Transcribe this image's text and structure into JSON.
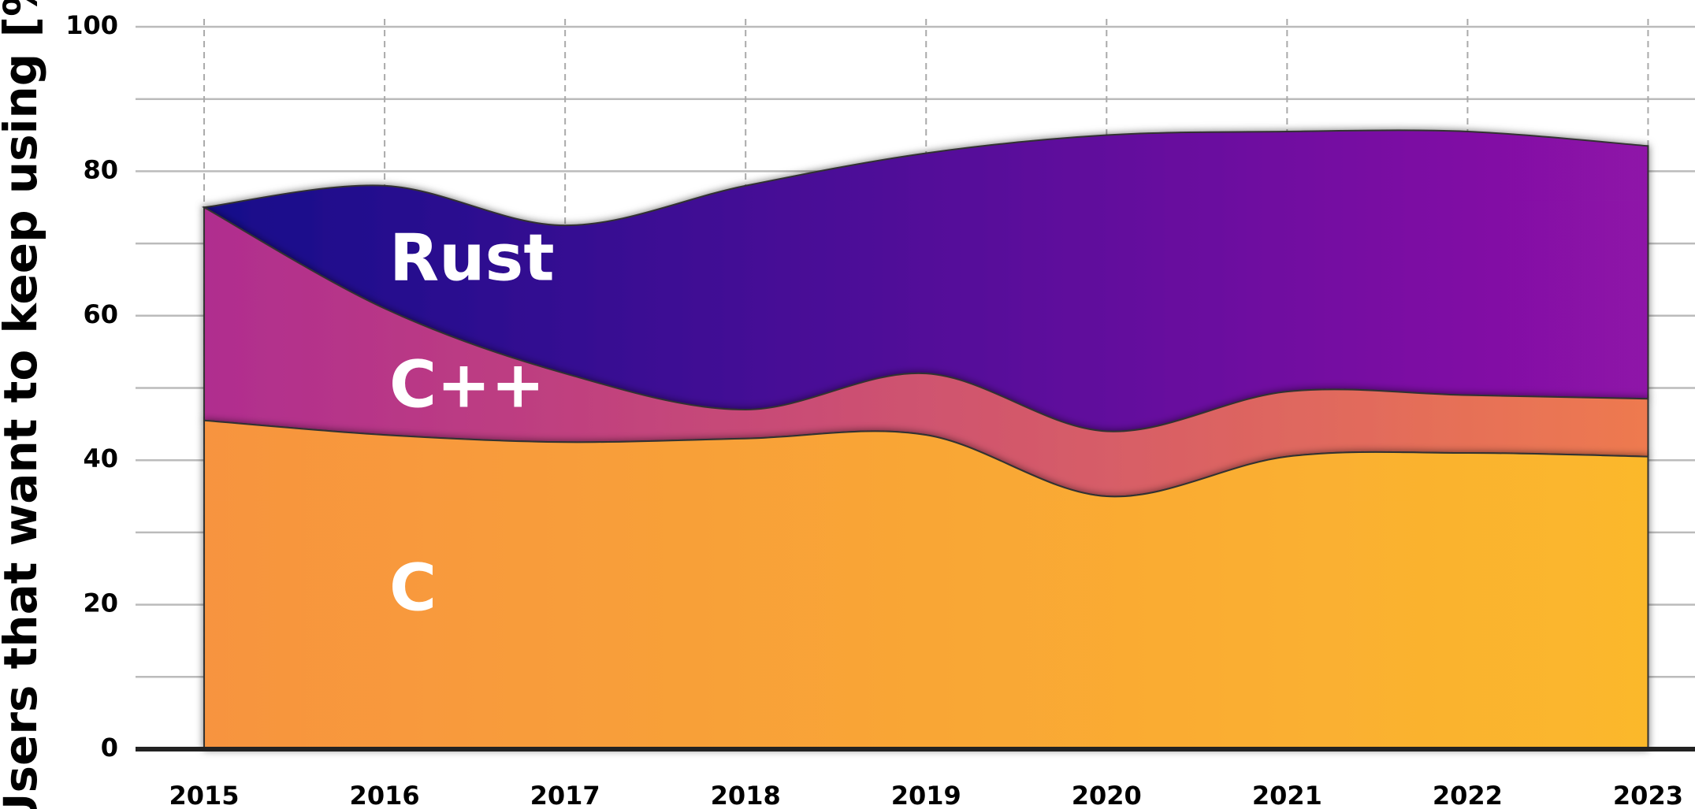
{
  "chart_data": {
    "type": "stacked_area",
    "y_label": "Users that want to keep using [%]",
    "x": [
      2015,
      2016,
      2017,
      2018,
      2019,
      2020,
      2021,
      2022,
      2023
    ],
    "series": [
      {
        "name": "C",
        "color": "#f7943f",
        "color_end": "#fbb82c",
        "values": [
          45.5,
          43.5,
          42.5,
          43,
          43.5,
          35,
          40.5,
          41,
          40.5
        ]
      },
      {
        "name": "C++",
        "color": "#b02d8f",
        "color_end": "#ee7a4f",
        "values": [
          29.5,
          17.5,
          9.5,
          4,
          8.5,
          9,
          9,
          8,
          8
        ]
      },
      {
        "name": "Rust",
        "color": "#16088a",
        "color_end": "#8f12a8",
        "values": [
          0,
          17,
          20.5,
          31,
          30.5,
          41,
          36,
          36.5,
          35
        ]
      }
    ],
    "xlim": [
      2014.62,
      2023.26
    ],
    "xticks": [
      2015,
      2016,
      2017,
      2018,
      2019,
      2020,
      2021,
      2022,
      2023
    ],
    "ylim": [
      0,
      100
    ],
    "yticks": [
      0,
      20,
      40,
      60,
      80,
      100
    ],
    "minor_yticks": [
      10,
      30,
      50,
      70,
      90
    ],
    "grid": true
  }
}
